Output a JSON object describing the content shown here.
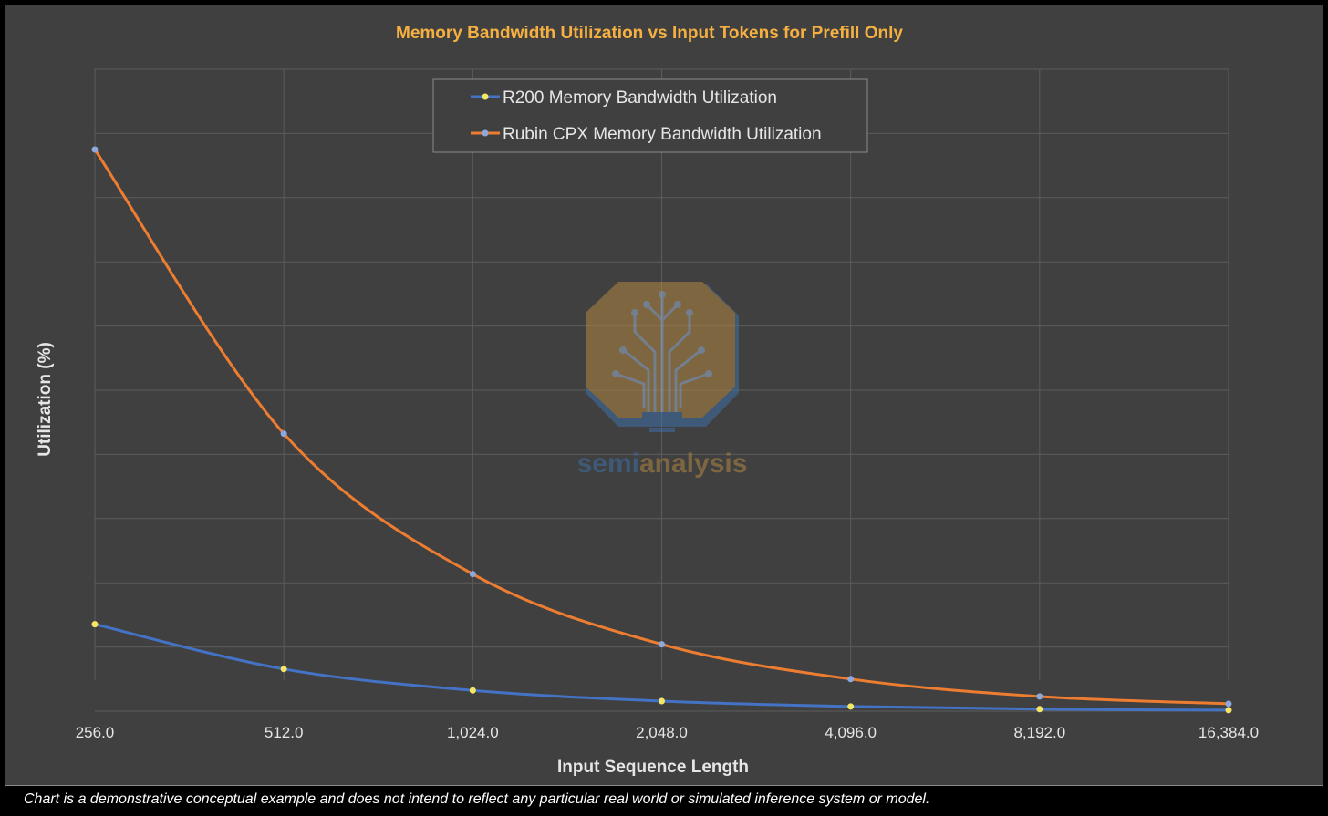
{
  "chart_data": {
    "type": "line",
    "title": "Memory Bandwidth Utilization vs Input Tokens for Prefill Only",
    "xlabel": "Input Sequence Length",
    "ylabel": "Utilization (%)",
    "categories": [
      "256.0",
      "512.0",
      "1,024.0",
      "2,048.0",
      "4,096.0",
      "8,192.0",
      "16,384.0"
    ],
    "x_scale": "log2",
    "y_tick_labels_shown": false,
    "grid": true,
    "legend_placement": "top-center",
    "series": [
      {
        "name": "R200 Memory Bandwidth Utilization",
        "values": [
          13.0,
          6.3,
          3.1,
          1.5,
          0.7,
          0.3,
          0.15
        ],
        "line_color": "#4472c4",
        "marker_color": "#f5e663"
      },
      {
        "name": "Rubin CPX Memory Bandwidth Utilization",
        "values": [
          84.0,
          41.5,
          20.5,
          10.0,
          4.8,
          2.2,
          1.1
        ],
        "line_color": "#ed7d31",
        "marker_color": "#8fa8dc"
      }
    ],
    "ylim": [
      0,
      96
    ]
  },
  "watermark": {
    "text_part1": "semi",
    "text_part2": "analysis",
    "color1": "#3f6fa8",
    "color2": "#b08640"
  },
  "footnote": "Chart is a demonstrative conceptual example and does not intend to reflect any particular real world or simulated inference system or model."
}
